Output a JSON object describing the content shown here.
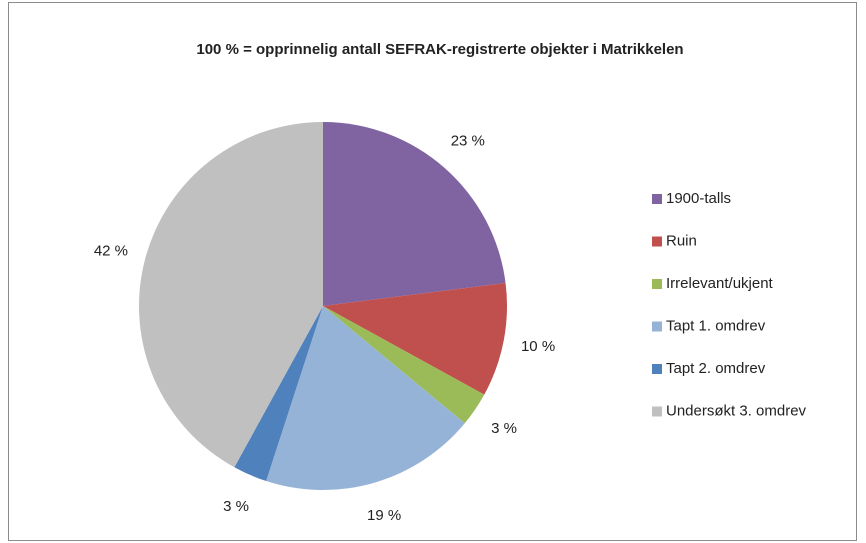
{
  "chart_data": {
    "type": "pie",
    "title": "100 % = opprinnelig antall SEFRAK-registrerte objekter i Matrikkelen",
    "categories": [
      "1900-talls",
      "Ruin",
      "Irrelevant/ukjent",
      "Tapt 1. omdrev",
      "Tapt 2. omdrev",
      "Undersøkt 3. omdrev"
    ],
    "values": [
      23,
      10,
      3,
      19,
      3,
      42
    ],
    "value_labels": [
      "23 %",
      "10 %",
      "3 %",
      "19 %",
      "3 %",
      "42 %"
    ],
    "colors": [
      "#8064a2",
      "#c0504d",
      "#9bbb59",
      "#95b3d7",
      "#4f81bd",
      "#c0c0c0"
    ],
    "legend": "right"
  }
}
